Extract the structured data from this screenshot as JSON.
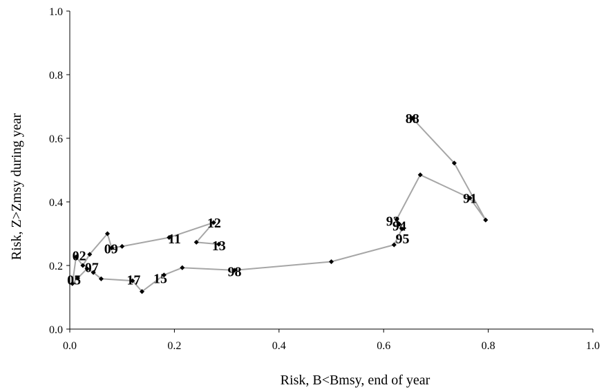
{
  "chart_data": {
    "type": "scatter",
    "xlabel": "Risk, B<Bmsy, end of year",
    "ylabel": "Risk, Z>Zmsy during year",
    "xlim": [
      0,
      1
    ],
    "ylim": [
      0,
      1
    ],
    "x_ticks": [
      "0.0",
      "0.2",
      "0.4",
      "0.6",
      "0.8",
      "1.0"
    ],
    "y_ticks": [
      "0.0",
      "0.2",
      "0.4",
      "0.6",
      "0.8",
      "1.0"
    ],
    "grid": false,
    "legend": "none",
    "line_color": "#a6a6a6",
    "marker_color": "#000000",
    "series": [
      {
        "x": [
          0.655,
          0.735,
          0.795,
          0.765,
          0.67,
          0.625,
          0.63,
          0.635,
          0.62,
          0.5,
          0.315,
          0.215,
          0.18,
          0.138,
          0.12,
          0.06,
          0.045,
          0.033,
          0.015,
          0.005,
          0.012,
          0.025,
          0.038,
          0.072,
          0.08,
          0.1,
          0.19,
          0.275,
          0.242,
          0.285
        ],
        "y": [
          0.663,
          0.522,
          0.343,
          0.412,
          0.485,
          0.345,
          0.33,
          0.315,
          0.265,
          0.212,
          0.185,
          0.193,
          0.17,
          0.118,
          0.152,
          0.158,
          0.178,
          0.19,
          0.16,
          0.143,
          0.227,
          0.2,
          0.235,
          0.3,
          0.255,
          0.26,
          0.288,
          0.335,
          0.273,
          0.267
        ],
        "labels": [
          "88",
          "",
          "",
          "91",
          "",
          "93",
          "94",
          "95",
          "",
          "",
          "98",
          "",
          "",
          "",
          "",
          "",
          "",
          "",
          "",
          "05",
          "02",
          "",
          "07",
          "",
          "09",
          "",
          "11",
          "12",
          "",
          "13"
        ]
      }
    ],
    "point_labels": [
      {
        "text": "88",
        "x": 0.655,
        "y": 0.663
      },
      {
        "text": "91",
        "x": 0.765,
        "y": 0.412
      },
      {
        "text": "93",
        "x": 0.618,
        "y": 0.34
      },
      {
        "text": "94",
        "x": 0.63,
        "y": 0.325
      },
      {
        "text": "95",
        "x": 0.636,
        "y": 0.285
      },
      {
        "text": "98",
        "x": 0.315,
        "y": 0.182
      },
      {
        "text": "15",
        "x": 0.173,
        "y": 0.16
      },
      {
        "text": "17",
        "x": 0.122,
        "y": 0.155
      },
      {
        "text": "05",
        "x": 0.008,
        "y": 0.155
      },
      {
        "text": "02",
        "x": 0.018,
        "y": 0.232
      },
      {
        "text": "07",
        "x": 0.042,
        "y": 0.195
      },
      {
        "text": "09",
        "x": 0.079,
        "y": 0.253
      },
      {
        "text": "11",
        "x": 0.2,
        "y": 0.285
      },
      {
        "text": "12",
        "x": 0.276,
        "y": 0.335
      },
      {
        "text": "13",
        "x": 0.285,
        "y": 0.263
      }
    ]
  }
}
